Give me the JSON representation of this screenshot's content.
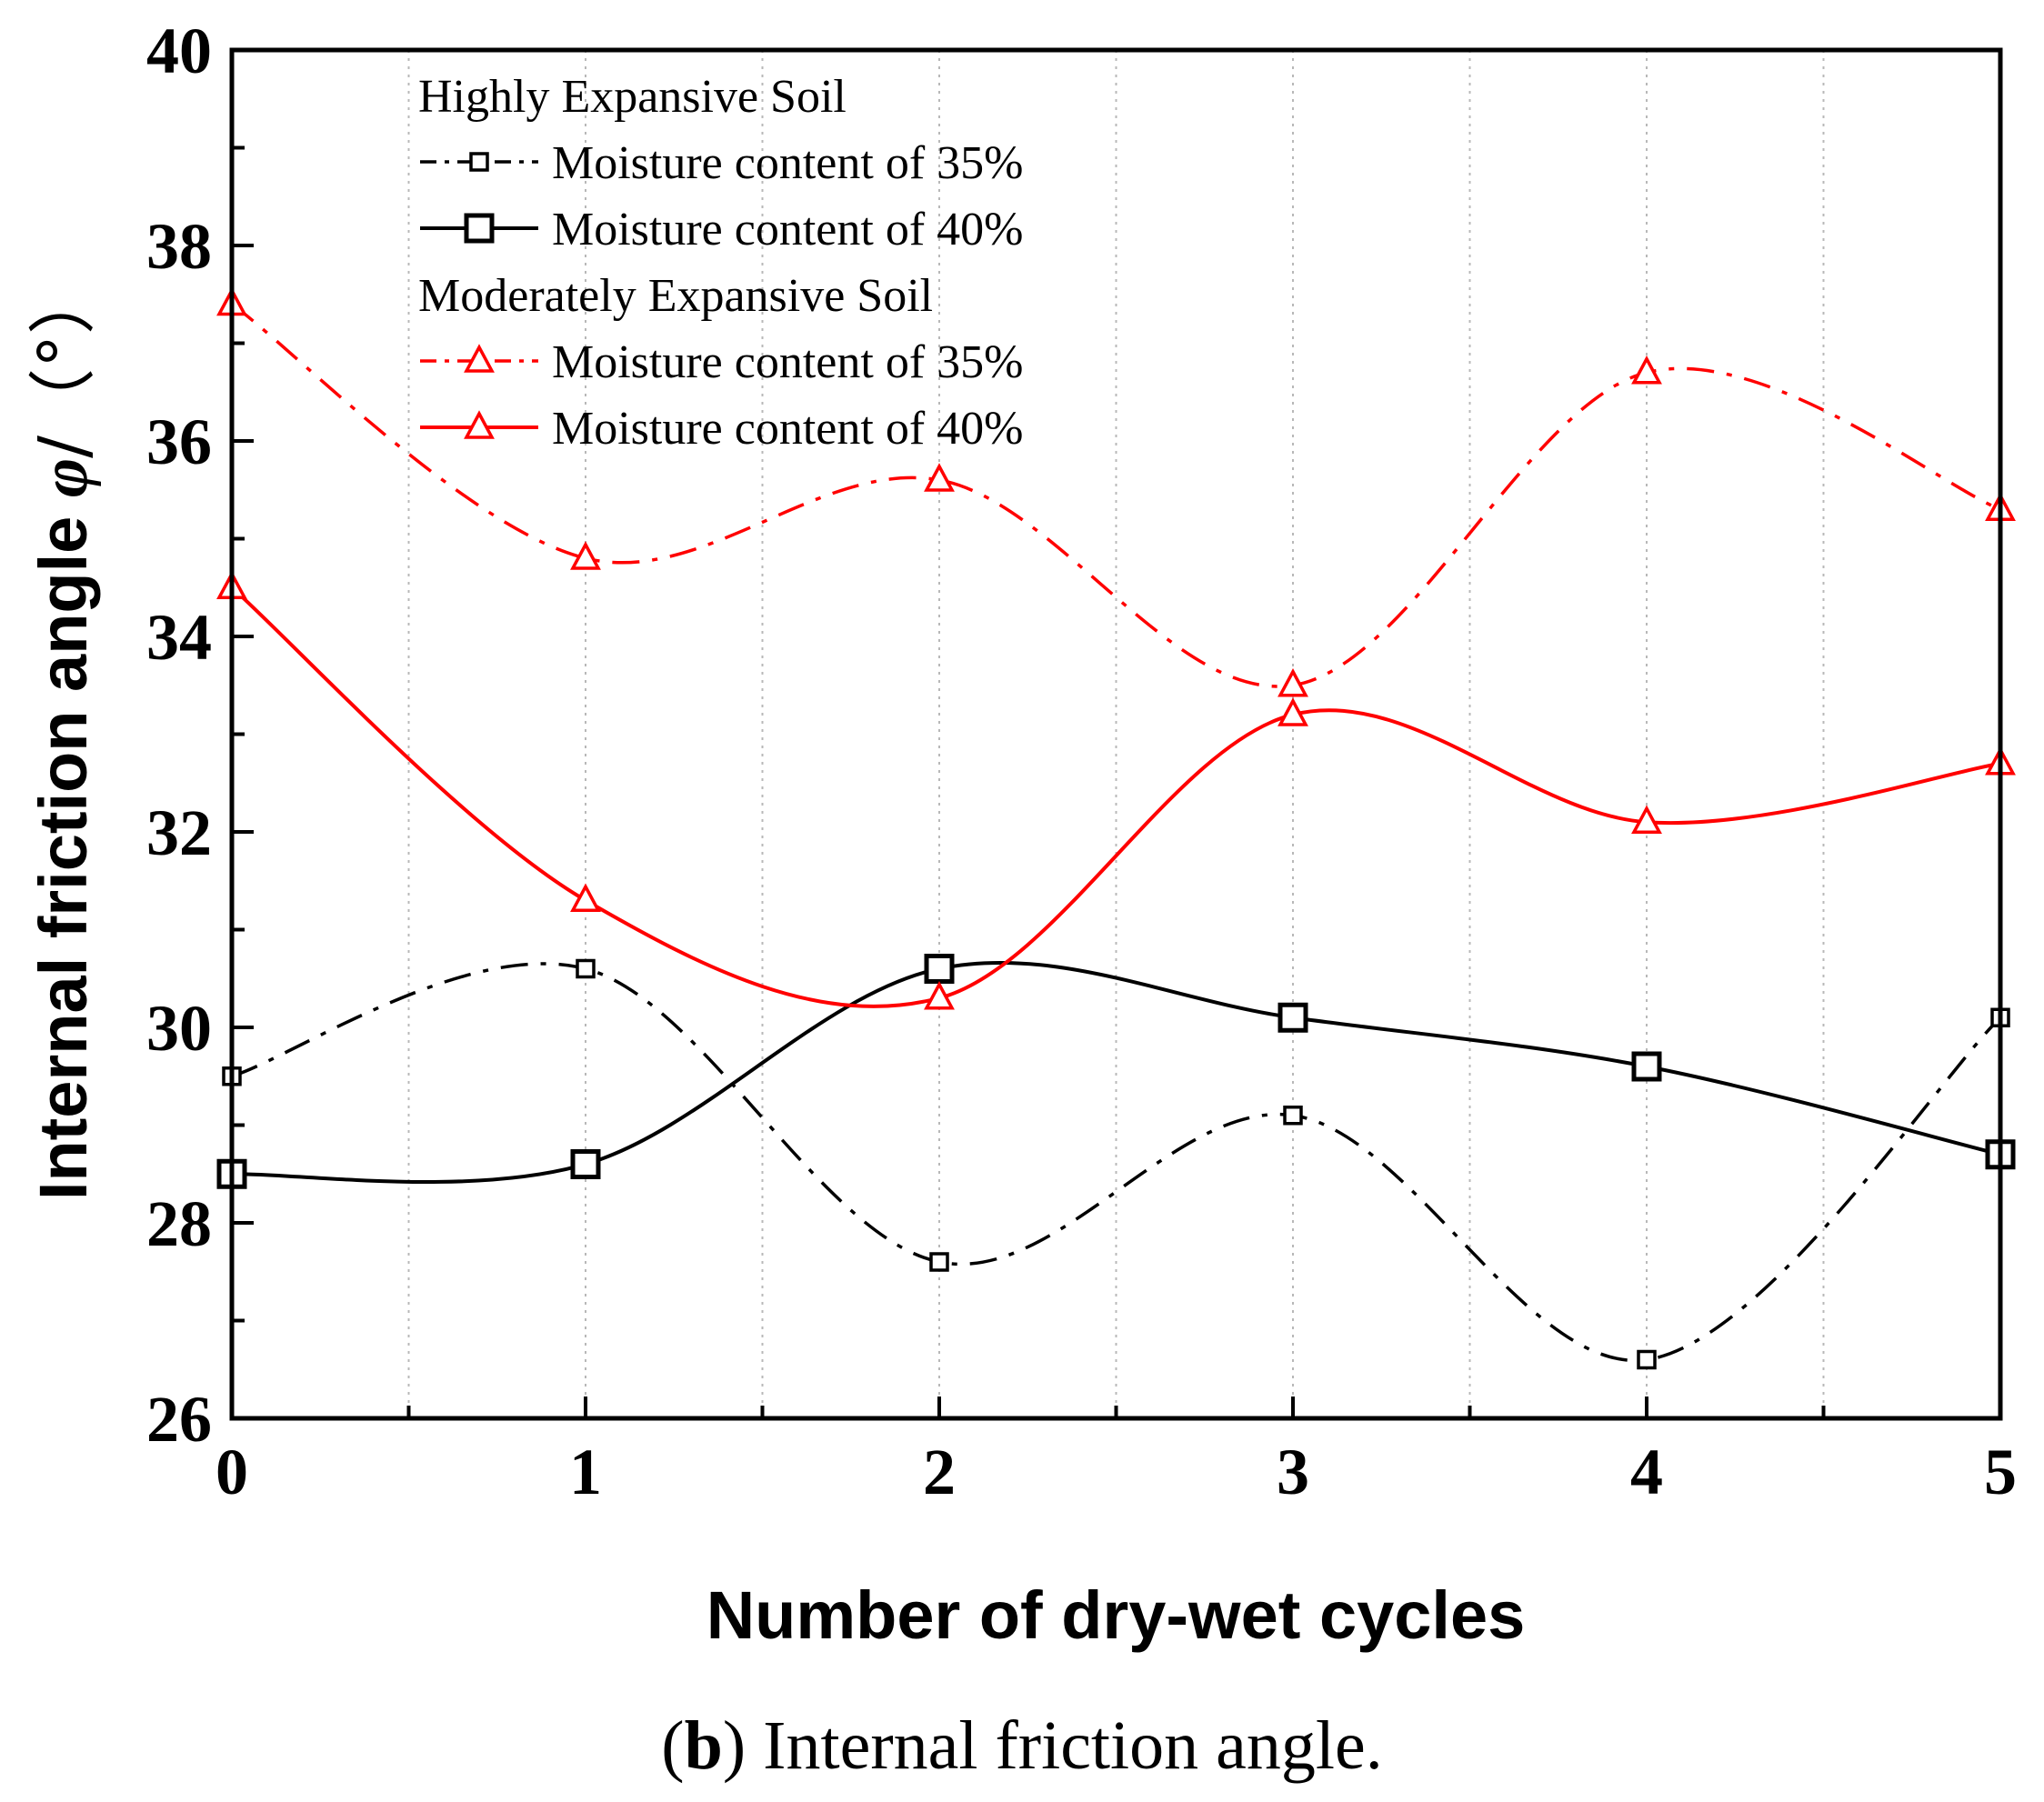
{
  "chart_data": {
    "type": "line",
    "xlabel": "Number of dry-wet cycles",
    "ylabel_prefix": "Internal friction angle ",
    "ylabel_symbol": "φ",
    "ylabel_suffix": "/（°）",
    "xlim": [
      0,
      5
    ],
    "ylim": [
      26,
      40
    ],
    "x_ticks": [
      "0",
      "1",
      "2",
      "3",
      "4",
      "5"
    ],
    "y_ticks": [
      "26",
      "28",
      "30",
      "32",
      "34",
      "36",
      "38",
      "40"
    ],
    "grid": "vertical dotted at half-cycle intervals",
    "legend_position": "top-left",
    "x": [
      0,
      1,
      2,
      3,
      4,
      5
    ],
    "legend_groups": [
      {
        "title": "Highly Expansive Soil",
        "series": [
          {
            "name": "Moisture content of 35%",
            "values": [
              29.5,
              30.6,
              27.6,
              29.1,
              26.6,
              30.1
            ],
            "color": "#000000",
            "marker": "small-square",
            "line_style": "dash-dot"
          },
          {
            "name": "Moisture content of 40%",
            "values": [
              28.5,
              28.6,
              30.6,
              30.1,
              29.6,
              28.7
            ],
            "color": "#000000",
            "marker": "large-square",
            "line_style": "solid"
          }
        ]
      },
      {
        "title": "Moderately Expansive Soil",
        "series": [
          {
            "name": "Moisture content of 35%",
            "values": [
              37.4,
              34.8,
              35.6,
              33.5,
              36.7,
              35.3
            ],
            "color": "#ff0000",
            "marker": "triangle",
            "line_style": "dash-dot"
          },
          {
            "name": "Moisture content of 40%",
            "values": [
              34.5,
              31.3,
              30.3,
              33.2,
              32.1,
              32.7
            ],
            "color": "#ff0000",
            "marker": "triangle",
            "line_style": "solid"
          }
        ]
      }
    ]
  },
  "caption": {
    "open_paren": "(",
    "letter": "b",
    "close_paren": ")",
    "text": " Internal friction angle."
  }
}
